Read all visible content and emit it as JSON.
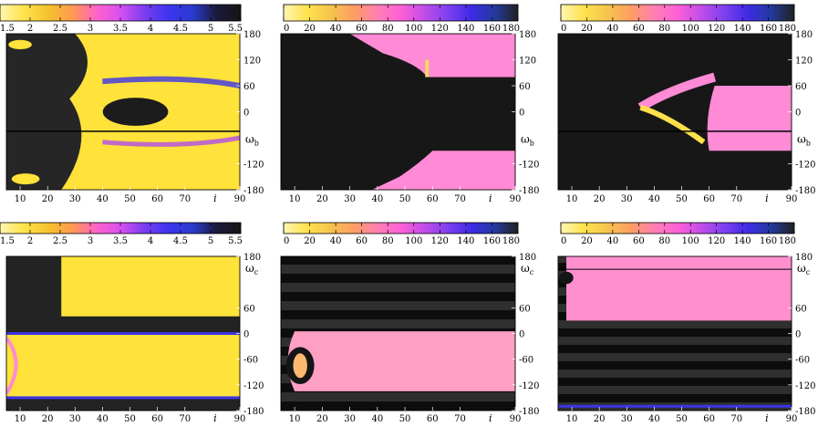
{
  "colors": {
    "stops_value": [
      "#fff6b0",
      "#ffe34a",
      "#f5c22e",
      "#ff9a4e",
      "#ff63c8",
      "#d850f0",
      "#7a3df0",
      "#3d35ef",
      "#2a3ccf",
      "#1a1a3c",
      "#151515"
    ],
    "stops_angle": [
      "#fff6b0",
      "#ffe24d",
      "#f6c44d",
      "#ff9d62",
      "#ff7fb3",
      "#ff60d6",
      "#c24de8",
      "#7f40f0",
      "#3f2be6",
      "#233a9e",
      "#202020"
    ],
    "dark_background": "#151515",
    "band_dark": "#0d0d0d",
    "band_light": "#2f2f2f"
  },
  "chart_data": [
    {
      "type": "heatmap",
      "row": "top",
      "col": 1,
      "colorbar": {
        "range": [
          1.5,
          5.5
        ],
        "ticks": [
          "1.5",
          "2",
          "2.5",
          "3",
          "3.5",
          "4",
          "4.5",
          "5",
          "5.5"
        ]
      },
      "x_ticks": [
        "10",
        "20",
        "30",
        "40",
        "50",
        "60",
        "70",
        "90"
      ],
      "x_label": "i",
      "x_range": [
        5,
        90
      ],
      "y_ticks": [
        "180",
        "120",
        "60",
        "0",
        "-120",
        "-180"
      ],
      "y_range": [
        -180,
        180
      ],
      "y_label": {
        "symbol": "ω",
        "sub": "b"
      },
      "colorbar_ticks_outside": true
    },
    {
      "type": "heatmap",
      "row": "top",
      "col": 2,
      "colorbar": {
        "range": [
          0,
          180
        ],
        "ticks": [
          "0",
          "20",
          "40",
          "60",
          "80",
          "100",
          "120",
          "140",
          "160",
          "180"
        ]
      },
      "x_ticks": [
        "10",
        "20",
        "30",
        "40",
        "50",
        "60",
        "70",
        "90"
      ],
      "x_label": "i",
      "x_range": [
        5,
        90
      ],
      "y_ticks": [
        "180",
        "120",
        "60",
        "0",
        "-120",
        "-180"
      ],
      "y_range": [
        -180,
        180
      ],
      "y_label": {
        "symbol": "ω",
        "sub": "b"
      }
    },
    {
      "type": "heatmap",
      "row": "top",
      "col": 3,
      "colorbar": {
        "range": [
          0,
          180
        ],
        "ticks": [
          "0",
          "20",
          "40",
          "60",
          "80",
          "100",
          "120",
          "140",
          "160",
          "180"
        ]
      },
      "x_ticks": [
        "10",
        "20",
        "30",
        "40",
        "50",
        "60",
        "70",
        "90"
      ],
      "x_label": "i",
      "x_range": [
        5,
        90
      ],
      "y_ticks": [
        "180",
        "120",
        "60",
        "0",
        "-120",
        "-180"
      ],
      "y_range": [
        -180,
        180
      ],
      "y_label": {
        "symbol": "ω",
        "sub": "b"
      }
    },
    {
      "type": "heatmap",
      "row": "bottom",
      "col": 1,
      "colorbar": {
        "range": [
          1.5,
          5.5
        ],
        "ticks": [
          "1.5",
          "2",
          "2.5",
          "3",
          "3.5",
          "4",
          "4.5",
          "5",
          "5.5"
        ]
      },
      "x_ticks": [
        "10",
        "20",
        "30",
        "40",
        "50",
        "60",
        "70",
        "90"
      ],
      "x_label": "i",
      "x_range": [
        5,
        90
      ],
      "y_ticks": [
        "180",
        "60",
        "0",
        "-60",
        "-120",
        "-180"
      ],
      "y_range": [
        -180,
        180
      ],
      "y_label": {
        "symbol": "ω",
        "sub": "c"
      },
      "colorbar_ticks_outside": true
    },
    {
      "type": "heatmap",
      "row": "bottom",
      "col": 2,
      "colorbar": {
        "range": [
          0,
          180
        ],
        "ticks": [
          "0",
          "20",
          "40",
          "60",
          "80",
          "100",
          "120",
          "140",
          "160",
          "180"
        ]
      },
      "x_ticks": [
        "10",
        "20",
        "30",
        "40",
        "50",
        "60",
        "70",
        "90"
      ],
      "x_label": "i",
      "x_range": [
        5,
        90
      ],
      "y_ticks": [
        "180",
        "60",
        "0",
        "-60",
        "-120",
        "-180"
      ],
      "y_range": [
        -180,
        180
      ],
      "y_label": {
        "symbol": "ω",
        "sub": "c"
      }
    },
    {
      "type": "heatmap",
      "row": "bottom",
      "col": 3,
      "colorbar": {
        "range": [
          0,
          180
        ],
        "ticks": [
          "0",
          "20",
          "40",
          "60",
          "80",
          "100",
          "120",
          "140",
          "160",
          "180"
        ]
      },
      "x_ticks": [
        "10",
        "20",
        "30",
        "40",
        "50",
        "60",
        "70",
        "90"
      ],
      "x_label": "i",
      "x_range": [
        5,
        90
      ],
      "y_ticks": [
        "180",
        "60",
        "0",
        "-60",
        "-120",
        "-180"
      ],
      "y_range": [
        -180,
        180
      ],
      "y_label": {
        "symbol": "ω",
        "sub": "c"
      }
    }
  ]
}
